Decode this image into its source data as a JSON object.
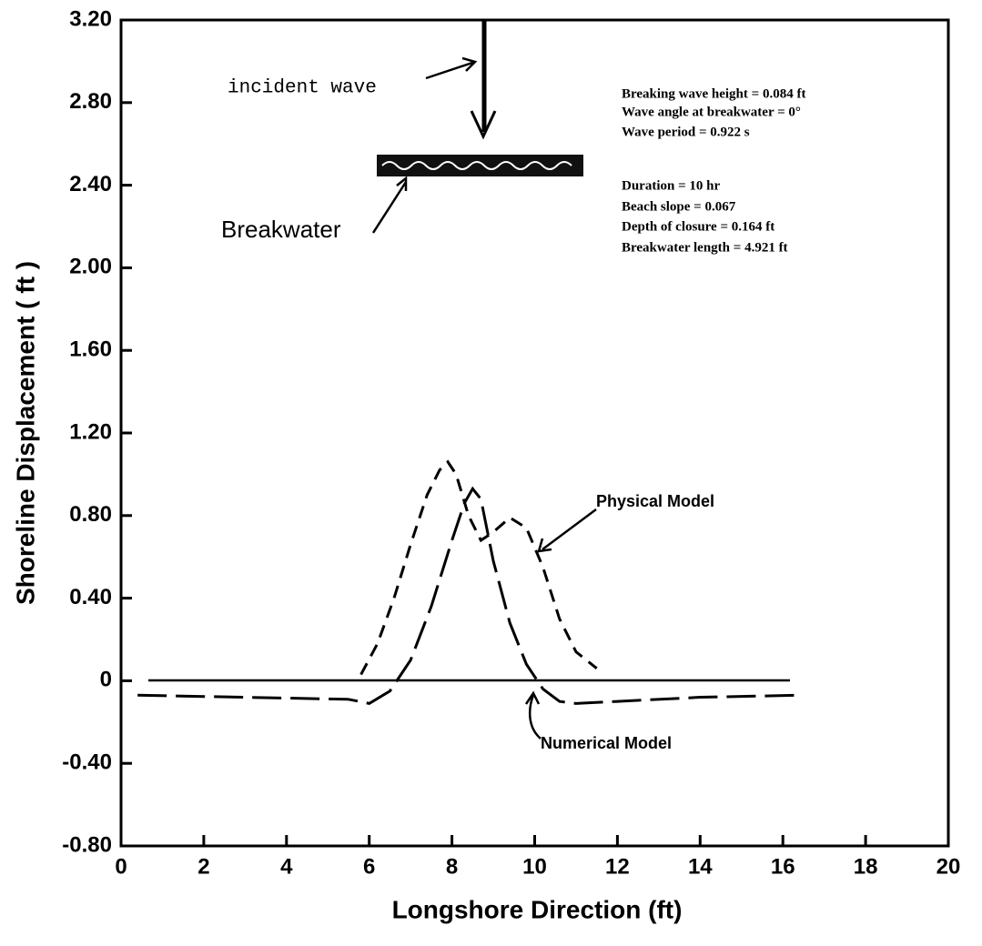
{
  "chart_data": {
    "type": "line",
    "xlabel": "Longshore Direction (ft)",
    "ylabel": "Shoreline Displacement ( ft )",
    "xlim": [
      0,
      20
    ],
    "xticks": [
      0,
      2,
      4,
      6,
      8,
      10,
      12,
      14,
      16,
      18,
      20
    ],
    "ylim": [
      -0.8,
      3.2
    ],
    "yticks": [
      {
        "value": -0.8,
        "label": "-0.80"
      },
      {
        "value": -0.4,
        "label": "-0.40"
      },
      0,
      {
        "value": 0.4,
        "label": "0.40"
      },
      {
        "value": 0.8,
        "label": "0.80"
      },
      {
        "value": 1.2,
        "label": "1.20"
      },
      {
        "value": 1.6,
        "label": "1.60"
      },
      {
        "value": 2.0,
        "label": "2.00"
      },
      {
        "value": 2.4,
        "label": "2.40"
      },
      {
        "value": 2.8,
        "label": "2.80"
      },
      {
        "value": 3.2,
        "label": "3.20"
      }
    ],
    "series": [
      {
        "name": "Physical Model",
        "color": "#000000",
        "dash": "14 9",
        "x": [
          5.8,
          6.2,
          6.6,
          7.0,
          7.4,
          7.7,
          7.9,
          8.1,
          8.4,
          8.7,
          9.0,
          9.4,
          9.8,
          10.2,
          10.6,
          11.0,
          11.5
        ],
        "values": [
          0.03,
          0.18,
          0.4,
          0.66,
          0.9,
          1.02,
          1.06,
          1.0,
          0.8,
          0.68,
          0.72,
          0.79,
          0.74,
          0.55,
          0.3,
          0.14,
          0.06
        ]
      },
      {
        "name": "Numerical Model",
        "color": "#000000",
        "dash": "32 10",
        "x": [
          0.4,
          3.0,
          5.5,
          6.0,
          6.5,
          7.0,
          7.5,
          8.0,
          8.3,
          8.5,
          8.7,
          9.0,
          9.4,
          9.8,
          10.2,
          10.6,
          11.0,
          12.0,
          14.0,
          16.4
        ],
        "values": [
          -0.07,
          -0.08,
          -0.09,
          -0.11,
          -0.05,
          0.1,
          0.36,
          0.68,
          0.86,
          0.93,
          0.88,
          0.58,
          0.28,
          0.08,
          -0.04,
          -0.1,
          -0.11,
          -0.1,
          -0.08,
          -0.07
        ]
      }
    ],
    "annotations": {
      "incident": "incident wave",
      "breakwater": "Breakwater",
      "params": [
        "Breaking wave height = 0.084 ft",
        "Wave angle at breakwater = 0°",
        "Wave period = 0.922 s",
        "Duration = 10 hr",
        "Beach slope = 0.067",
        "Depth of closure = 0.164 ft",
        "Breakwater length = 4.921 ft"
      ]
    }
  }
}
